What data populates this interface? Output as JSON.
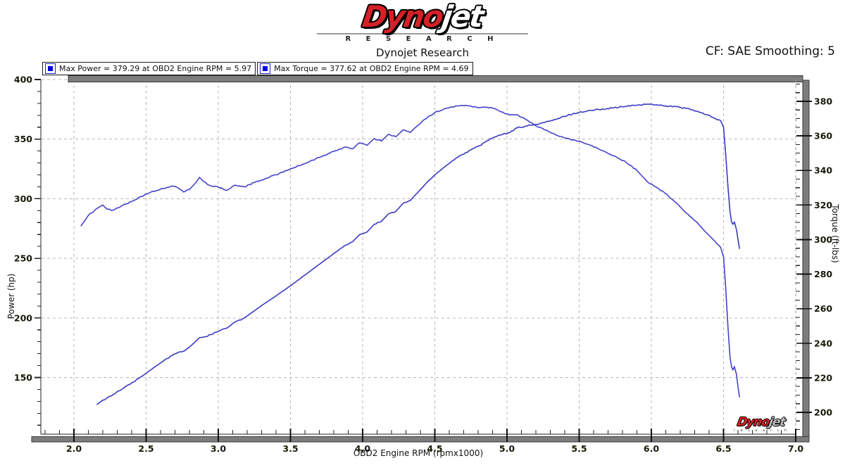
{
  "header": {
    "logo": {
      "dyno": "Dyno",
      "jet": "jet",
      "research_spaced": "R E S E A R C H"
    },
    "title": "Dynojet Research",
    "cf_label": "CF: SAE Smoothing: 5"
  },
  "legend": [
    {
      "label": "Max Power = 379.29 at OBD2 Engine RPM = 5.97",
      "swatch_color": "#0000e0"
    },
    {
      "label": "Max Torque = 377.62 at OBD2 Engine RPM = 4.69",
      "swatch_color": "#0000e0"
    }
  ],
  "watermark": {
    "dyno": "Dyno",
    "jet": "jet",
    "research": "r e s e a r c h"
  },
  "chart_data": {
    "type": "line",
    "title": "Dynojet Research",
    "xlabel": "OBD2 Engine RPM (rpmx1000)",
    "ylabel_left": "Power (hp)",
    "ylabel_right": "Torque (ft-lbs)",
    "xlim": [
      1.77,
      7.0
    ],
    "left_lim": [
      100,
      400
    ],
    "right_lim": [
      186,
      392
    ],
    "grid": "dashed",
    "legend_position": "top-left",
    "x_tick_values": [
      2.0,
      2.5,
      3.0,
      3.5,
      4.0,
      4.5,
      5.0,
      5.5,
      6.0,
      6.5,
      7.0
    ],
    "x_tick_labels": [
      "2.0",
      "2.5",
      "3.0",
      "3.5",
      "4.0",
      "4.5",
      "5.0",
      "5.5",
      "6.0",
      "6.5",
      "7.0"
    ],
    "x_minor_step": 0.1,
    "left_tick_values": [
      150,
      200,
      250,
      300,
      350,
      400
    ],
    "left_minor_step": 10,
    "right_tick_values": [
      200,
      220,
      240,
      260,
      280,
      300,
      320,
      340,
      360,
      380
    ],
    "right_minor_step": 5,
    "max_power": {
      "value": 379.29,
      "rpm": 5.97
    },
    "max_torque": {
      "value": 377.62,
      "rpm": 4.69
    },
    "series": [
      {
        "name": "Power",
        "axis": "left",
        "units": "hp",
        "color": "#3a3ac2",
        "points": [
          [
            2.16,
            127.5
          ],
          [
            2.2,
            131
          ],
          [
            2.23,
            133
          ],
          [
            2.27,
            135.5
          ],
          [
            2.33,
            140
          ],
          [
            2.4,
            145.5
          ],
          [
            2.47,
            151
          ],
          [
            2.55,
            158
          ],
          [
            2.62,
            164
          ],
          [
            2.68,
            168.5
          ],
          [
            2.72,
            171
          ],
          [
            2.76,
            172
          ],
          [
            2.8,
            175.5
          ],
          [
            2.845,
            180.5
          ],
          [
            2.87,
            183.5
          ],
          [
            2.9,
            184
          ],
          [
            2.95,
            186
          ],
          [
            3.0,
            188.8
          ],
          [
            3.06,
            191.5
          ],
          [
            3.12,
            197
          ],
          [
            3.18,
            200
          ],
          [
            3.25,
            206
          ],
          [
            3.32,
            212
          ],
          [
            3.4,
            218.5
          ],
          [
            3.5,
            227
          ],
          [
            3.6,
            236
          ],
          [
            3.7,
            245
          ],
          [
            3.8,
            254
          ],
          [
            3.88,
            261
          ],
          [
            3.93,
            264
          ],
          [
            3.98,
            270
          ],
          [
            4.03,
            272
          ],
          [
            4.08,
            278.5
          ],
          [
            4.13,
            281
          ],
          [
            4.18,
            287.5
          ],
          [
            4.23,
            289.5
          ],
          [
            4.28,
            296
          ],
          [
            4.33,
            298.5
          ],
          [
            4.38,
            305
          ],
          [
            4.44,
            313
          ],
          [
            4.5,
            320
          ],
          [
            4.56,
            326
          ],
          [
            4.62,
            331.5
          ],
          [
            4.69,
            337
          ],
          [
            4.75,
            341
          ],
          [
            4.81,
            344.5
          ],
          [
            4.86,
            348.5
          ],
          [
            4.92,
            352
          ],
          [
            4.97,
            354
          ],
          [
            5.02,
            355.5
          ],
          [
            5.07,
            359.5
          ],
          [
            5.13,
            361
          ],
          [
            5.19,
            362
          ],
          [
            5.26,
            364
          ],
          [
            5.34,
            366.5
          ],
          [
            5.42,
            370
          ],
          [
            5.5,
            372.5
          ],
          [
            5.58,
            374
          ],
          [
            5.66,
            375.3
          ],
          [
            5.74,
            376.3
          ],
          [
            5.82,
            377.4
          ],
          [
            5.9,
            378.5
          ],
          [
            5.97,
            379.29
          ],
          [
            6.04,
            378.8
          ],
          [
            6.1,
            377.9
          ],
          [
            6.17,
            377.2
          ],
          [
            6.24,
            375.8
          ],
          [
            6.31,
            373.5
          ],
          [
            6.38,
            370.5
          ],
          [
            6.44,
            367.5
          ],
          [
            6.48,
            365.5
          ],
          [
            6.5,
            360
          ],
          [
            6.515,
            337
          ],
          [
            6.53,
            311
          ],
          [
            6.545,
            289
          ],
          [
            6.555,
            281
          ],
          [
            6.565,
            278.5
          ],
          [
            6.575,
            280.5
          ],
          [
            6.59,
            274
          ],
          [
            6.6,
            266
          ],
          [
            6.61,
            258.3
          ]
        ]
      },
      {
        "name": "Torque",
        "axis": "right",
        "units": "ft-lbs",
        "color": "#4444ca",
        "points": [
          [
            2.05,
            308
          ],
          [
            2.1,
            314
          ],
          [
            2.16,
            318
          ],
          [
            2.2,
            320
          ],
          [
            2.23,
            317.5
          ],
          [
            2.27,
            317
          ],
          [
            2.33,
            319.5
          ],
          [
            2.4,
            322
          ],
          [
            2.47,
            325
          ],
          [
            2.55,
            328
          ],
          [
            2.62,
            329.5
          ],
          [
            2.68,
            331
          ],
          [
            2.72,
            330
          ],
          [
            2.76,
            327.5
          ],
          [
            2.8,
            329
          ],
          [
            2.845,
            333
          ],
          [
            2.87,
            336
          ],
          [
            2.9,
            333.5
          ],
          [
            2.95,
            331
          ],
          [
            3.0,
            330.5
          ],
          [
            3.06,
            328.5
          ],
          [
            3.12,
            331.5
          ],
          [
            3.18,
            330.5
          ],
          [
            3.25,
            333
          ],
          [
            3.32,
            335
          ],
          [
            3.4,
            337.5
          ],
          [
            3.5,
            341
          ],
          [
            3.6,
            344
          ],
          [
            3.7,
            347.5
          ],
          [
            3.8,
            351
          ],
          [
            3.88,
            353.5
          ],
          [
            3.93,
            352.5
          ],
          [
            3.98,
            356
          ],
          [
            4.03,
            354.5
          ],
          [
            4.08,
            358.5
          ],
          [
            4.13,
            357
          ],
          [
            4.18,
            361
          ],
          [
            4.23,
            359.5
          ],
          [
            4.28,
            363.5
          ],
          [
            4.33,
            362
          ],
          [
            4.38,
            366
          ],
          [
            4.44,
            370
          ],
          [
            4.5,
            373.5
          ],
          [
            4.56,
            375.5
          ],
          [
            4.62,
            376.8
          ],
          [
            4.69,
            377.62
          ],
          [
            4.75,
            377.2
          ],
          [
            4.81,
            376.3
          ],
          [
            4.86,
            376.6
          ],
          [
            4.92,
            375.6
          ],
          [
            4.97,
            373.8
          ],
          [
            5.02,
            372
          ],
          [
            5.07,
            372.3
          ],
          [
            5.13,
            369.5
          ],
          [
            5.19,
            366.5
          ],
          [
            5.26,
            363.5
          ],
          [
            5.34,
            360.5
          ],
          [
            5.42,
            358.5
          ],
          [
            5.5,
            357
          ],
          [
            5.58,
            354.5
          ],
          [
            5.66,
            351.5
          ],
          [
            5.74,
            348.5
          ],
          [
            5.82,
            345
          ],
          [
            5.9,
            340
          ],
          [
            5.97,
            333.7
          ],
          [
            6.04,
            330
          ],
          [
            6.1,
            326.5
          ],
          [
            6.17,
            321.5
          ],
          [
            6.24,
            315.5
          ],
          [
            6.31,
            310.5
          ],
          [
            6.38,
            304
          ],
          [
            6.44,
            299
          ],
          [
            6.48,
            295.5
          ],
          [
            6.5,
            290
          ],
          [
            6.515,
            272
          ],
          [
            6.53,
            250
          ],
          [
            6.545,
            232
          ],
          [
            6.555,
            226.5
          ],
          [
            6.565,
            224.5
          ],
          [
            6.575,
            226.5
          ],
          [
            6.59,
            222
          ],
          [
            6.6,
            215
          ],
          [
            6.61,
            209
          ]
        ]
      }
    ]
  }
}
